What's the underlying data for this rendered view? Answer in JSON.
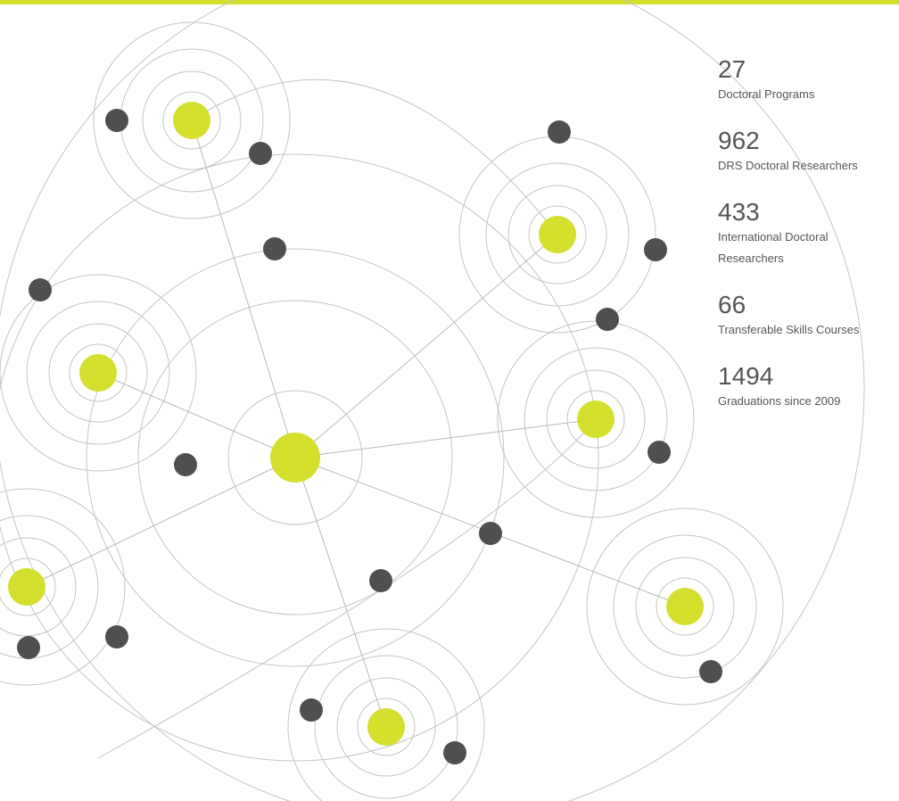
{
  "stats": [
    {
      "value": "27",
      "label": "Doctoral Programs"
    },
    {
      "value": "962",
      "label": "DRS Doctoral Researchers"
    },
    {
      "value": "433",
      "label": "International Doctoral Researchers"
    },
    {
      "value": "66",
      "label": "Transferable Skills Courses"
    },
    {
      "value": "1494",
      "label": "Graduations since 2009"
    }
  ]
}
